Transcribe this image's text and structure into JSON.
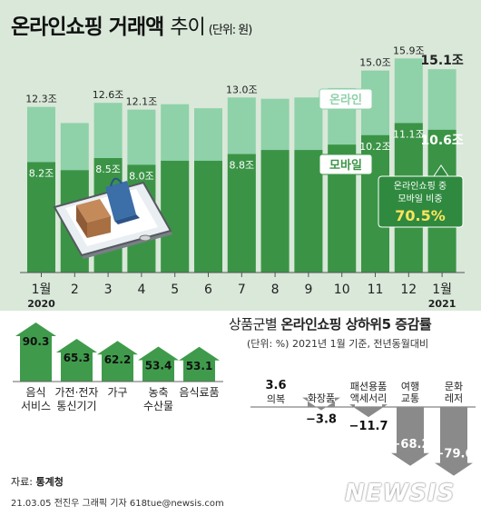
{
  "title": {
    "main": "온라인쇼핑 거래액",
    "sub": "추이",
    "unit": "(단위: 원)"
  },
  "colors": {
    "online": "#8fd1a9",
    "mobile": "#3b9446",
    "bg": "#d9e8d9",
    "arrow_up": "#3f9b4b",
    "arrow_down": "#8a8a8a"
  },
  "chart_data": [
    {
      "type": "bar",
      "stacked": "overlay",
      "categories": [
        "1",
        "2",
        "3",
        "4",
        "5",
        "6",
        "7",
        "8",
        "9",
        "10",
        "11",
        "12",
        "1"
      ],
      "year_labels": {
        "first": "2020",
        "last": "2021"
      },
      "series": [
        {
          "name": "온라인",
          "values": [
            12.3,
            11.1,
            12.6,
            12.1,
            12.5,
            12.2,
            13.0,
            12.9,
            13.0,
            13.7,
            15.0,
            15.9,
            15.1
          ]
        },
        {
          "name": "모바일",
          "values": [
            8.2,
            7.6,
            8.5,
            8.0,
            8.3,
            8.3,
            8.8,
            9.1,
            9.1,
            9.5,
            10.2,
            11.1,
            10.6
          ]
        }
      ],
      "labels": {
        "online": [
          "12.3조",
          "",
          "12.6조",
          "12.1조",
          "",
          "",
          "13.0조",
          "",
          "",
          "",
          "15.0조",
          "15.9조",
          "15.1조"
        ],
        "mobile": [
          "8.2조",
          "",
          "8.5조",
          "8.0조",
          "",
          "",
          "8.8조",
          "",
          "",
          "",
          "10.2조",
          "11.1조",
          "10.6조"
        ]
      },
      "annotation": {
        "line1": "온라인쇼핑 중",
        "line2": "모바일 비중",
        "value": "70.5%"
      },
      "ylim": [
        0,
        17
      ]
    },
    {
      "type": "bar",
      "title_prefix": "상품군별",
      "title_bold": "온라인쇼핑 상하위5 증감률",
      "note": "(단위: %) 2021년 1월 기준, 전년동월대비",
      "top5": [
        {
          "label": [
            "음식",
            "서비스"
          ],
          "value": 90.3,
          "display": "90.3"
        },
        {
          "label": [
            "가전·전자",
            "통신기기"
          ],
          "value": 65.3,
          "display": "65.3"
        },
        {
          "label": [
            "가구"
          ],
          "value": 62.2,
          "display": "62.2"
        },
        {
          "label": [
            "농축",
            "수산물"
          ],
          "value": 53.4,
          "display": "53.4"
        },
        {
          "label": [
            "음식료품"
          ],
          "value": 53.1,
          "display": "53.1"
        }
      ],
      "bottom5": [
        {
          "label": [
            "의복"
          ],
          "value": 3.6,
          "display": "3.6"
        },
        {
          "label": [
            "화장품"
          ],
          "value": -3.8,
          "display": "−3.8"
        },
        {
          "label": [
            "패션용품",
            "액세서리"
          ],
          "value": -11.7,
          "display": "−11.7"
        },
        {
          "label": [
            "여행",
            "교통"
          ],
          "value": -68.2,
          "display": "−68.2"
        },
        {
          "label": [
            "문화",
            "레저"
          ],
          "value": -79.6,
          "display": "−79.6"
        }
      ]
    }
  ],
  "footer": {
    "source_prefix": "자료:",
    "source_name": "통계청",
    "credit": "21.03.05 전진우 그래픽 기자 618tue@newsis.com",
    "watermark": "NEWSIS"
  }
}
